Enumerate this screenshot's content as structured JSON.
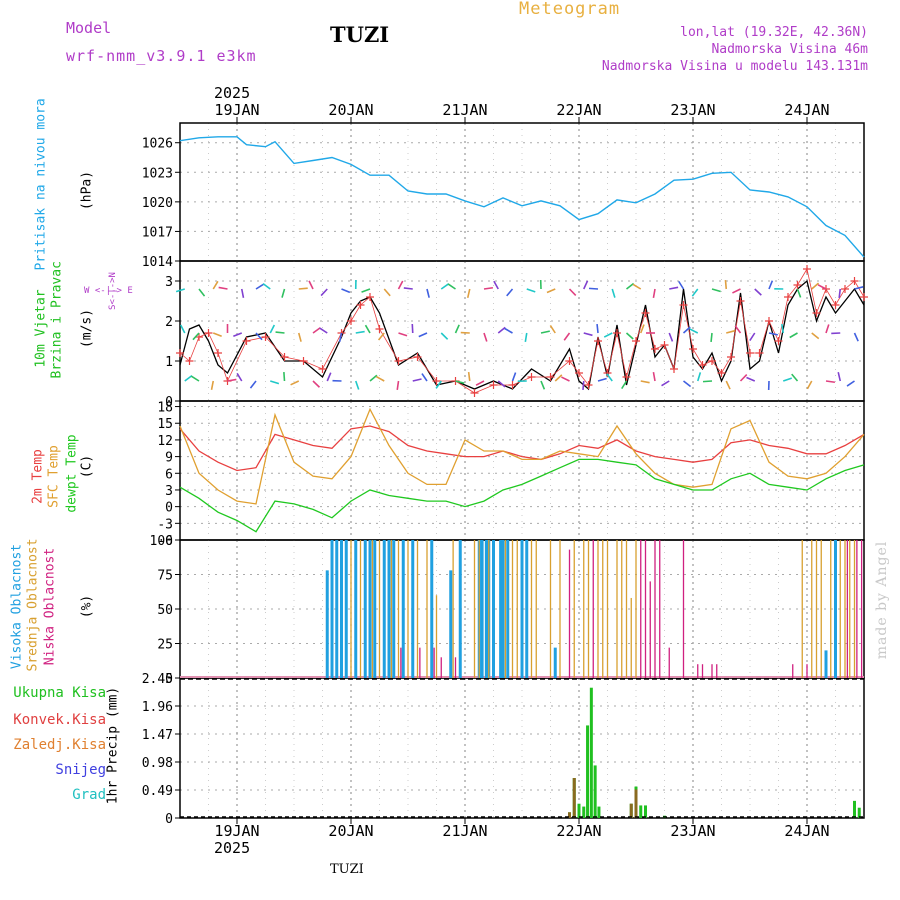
{
  "header": {
    "model_label": "Model",
    "model_version": "wrf-nmm_v3.9.1 e3km",
    "station": "TUZI",
    "title": "Meteogram",
    "coords": "lon,lat (19.32E, 42.36N)",
    "elevation": "Nadmorska Visina 46m",
    "model_elevation": "Nadmorska Visina u modelu 143.131m",
    "footer_station": "TUZI",
    "watermark": "made by Angel"
  },
  "time_axis": {
    "year": "2025",
    "days": [
      "19JAN",
      "20JAN",
      "21JAN",
      "22JAN",
      "23JAN",
      "24JAN"
    ],
    "hours_start": 0,
    "hours_end": 144,
    "day_start_hours": [
      12,
      36,
      60,
      84,
      108,
      132
    ]
  },
  "panels": {
    "pressure": {
      "title": "Pritisak na nivou mora",
      "unit": "(hPa)",
      "color": "#20a8e8"
    },
    "wind": {
      "title_line1": "10m Vjetar",
      "title_line2": "Brzina i Pravac",
      "unit": "(m/s)",
      "compass": "W <-|-> E",
      "compass_vert": "S<-|->N"
    },
    "temperature": {
      "title1": "2m Temp",
      "title2": "SFC Temp",
      "title3": "dewpt Temp",
      "unit": "(C)",
      "colors": [
        "#e84040",
        "#e0a030",
        "#20c820"
      ]
    },
    "cloud": {
      "title1": "Visoka Oblacnost",
      "title2": "Srednja Oblacnost",
      "title3": "Niska Oblacnost",
      "unit": "(%)",
      "colors": [
        "#20a0e0",
        "#d8a030",
        "#d02080"
      ]
    },
    "precip": {
      "unit": "1hr Precip (mm)",
      "legend": [
        "Ukupna Kisa",
        "Konvek.Kisa",
        "Zaledj.Kisa",
        "Snijeg",
        "Grad"
      ],
      "legend_colors": [
        "#20c020",
        "#e04040",
        "#e08030",
        "#4040e0",
        "#20c0c0"
      ]
    }
  },
  "chart_data": [
    {
      "type": "line",
      "title": "Pritisak na nivou mora",
      "ylabel": "(hPa)",
      "ylim": [
        1014,
        1028
      ],
      "yticks": [
        1014,
        1017,
        1020,
        1023,
        1026
      ],
      "x": [
        0,
        4,
        8,
        12,
        14,
        18,
        20,
        22,
        24,
        28,
        32,
        36,
        40,
        44,
        48,
        52,
        56,
        60,
        64,
        68,
        72,
        76,
        80,
        84,
        88,
        92,
        96,
        100,
        104,
        108,
        112,
        116,
        120,
        124,
        128,
        132,
        136,
        140,
        144
      ],
      "series": [
        {
          "name": "MSLP",
          "values": [
            1026.2,
            1026.5,
            1026.6,
            1026.6,
            1025.8,
            1025.6,
            1026.1,
            1025.0,
            1023.9,
            1024.2,
            1024.5,
            1023.8,
            1022.7,
            1022.7,
            1021.1,
            1020.8,
            1020.8,
            1020.1,
            1019.5,
            1020.4,
            1019.6,
            1020.1,
            1019.6,
            1018.2,
            1018.8,
            1020.2,
            1019.9,
            1020.8,
            1022.2,
            1022.3,
            1022.9,
            1023.0,
            1021.2,
            1021.0,
            1020.5,
            1019.5,
            1017.6,
            1016.6,
            1014.4
          ]
        }
      ]
    },
    {
      "type": "line",
      "title": "10m Vjetar Brzina i Pravac",
      "ylabel": "(m/s)",
      "ylim": [
        0,
        3.5
      ],
      "yticks": [
        0,
        1,
        2,
        3
      ],
      "x": [
        0,
        2,
        4,
        6,
        8,
        10,
        14,
        18,
        22,
        26,
        30,
        34,
        36,
        38,
        40,
        42,
        46,
        50,
        54,
        58,
        62,
        66,
        70,
        74,
        78,
        82,
        84,
        86,
        88,
        90,
        92,
        94,
        96,
        98,
        100,
        102,
        104,
        106,
        108,
        110,
        112,
        114,
        116,
        118,
        120,
        122,
        124,
        126,
        128,
        130,
        132,
        134,
        136,
        138,
        140,
        142,
        144
      ],
      "series": [
        {
          "name": "model",
          "values": [
            0.9,
            1.8,
            1.9,
            1.5,
            0.9,
            0.7,
            1.6,
            1.7,
            1.0,
            1.0,
            0.6,
            1.6,
            2.2,
            2.5,
            2.6,
            2.2,
            0.9,
            1.2,
            0.4,
            0.5,
            0.3,
            0.5,
            0.3,
            0.8,
            0.5,
            1.3,
            0.5,
            0.3,
            1.6,
            0.6,
            1.9,
            0.4,
            1.4,
            2.4,
            1.1,
            1.4,
            0.8,
            2.8,
            1.1,
            0.8,
            1.2,
            0.5,
            1.0,
            2.7,
            0.8,
            1.0,
            2.0,
            1.2,
            2.4,
            2.8,
            3.0,
            2.0,
            2.6,
            2.2,
            2.5,
            2.8,
            2.4
          ]
        },
        {
          "name": "gust",
          "values": [
            1.2,
            1.0,
            1.6,
            1.7,
            1.2,
            0.5,
            1.5,
            1.6,
            1.1,
            1.0,
            0.8,
            1.7,
            2.0,
            2.4,
            2.6,
            1.8,
            1.0,
            1.1,
            0.5,
            0.5,
            0.2,
            0.4,
            0.4,
            0.6,
            0.6,
            1.0,
            0.7,
            0.4,
            1.5,
            0.7,
            1.7,
            0.6,
            1.5,
            2.2,
            1.3,
            1.4,
            0.8,
            2.4,
            1.3,
            0.9,
            1.0,
            0.7,
            1.1,
            2.5,
            1.2,
            1.2,
            2.0,
            1.5,
            2.6,
            2.9,
            3.3,
            2.2,
            2.8,
            2.4,
            2.8,
            3.0,
            2.6
          ]
        }
      ]
    },
    {
      "type": "line",
      "title": "2m Temp / SFC Temp / dewpt Temp",
      "ylabel": "(C)",
      "ylim": [
        -6,
        19
      ],
      "yticks": [
        -6,
        -3,
        0,
        3,
        6,
        9,
        12,
        15,
        18
      ],
      "x": [
        0,
        4,
        8,
        12,
        16,
        20,
        24,
        28,
        32,
        36,
        40,
        44,
        48,
        52,
        56,
        60,
        64,
        68,
        72,
        76,
        80,
        84,
        88,
        92,
        96,
        100,
        104,
        108,
        112,
        116,
        120,
        124,
        128,
        132,
        136,
        140,
        144
      ],
      "series": [
        {
          "name": "2m Temp",
          "values": [
            14.0,
            10.0,
            8.0,
            6.5,
            7.0,
            13.0,
            12.0,
            11.0,
            10.5,
            14.0,
            14.5,
            13.5,
            11.0,
            10.0,
            9.5,
            9.0,
            9.0,
            10.0,
            9.0,
            8.5,
            9.5,
            11.0,
            10.5,
            12.0,
            10.0,
            9.0,
            8.5,
            8.0,
            8.5,
            11.5,
            12.0,
            11.0,
            10.5,
            9.5,
            9.5,
            11.0,
            13.0
          ]
        },
        {
          "name": "SFC Temp",
          "values": [
            14.5,
            6.0,
            3.0,
            1.0,
            0.5,
            16.5,
            8.0,
            5.5,
            5.0,
            9.0,
            17.5,
            11.0,
            6.0,
            4.0,
            4.0,
            12.0,
            10.0,
            10.0,
            8.5,
            8.5,
            10.0,
            9.5,
            9.0,
            14.5,
            9.5,
            6.0,
            4.0,
            3.5,
            4.0,
            14.0,
            15.5,
            8.0,
            5.5,
            5.0,
            6.0,
            9.0,
            13.0
          ]
        },
        {
          "name": "dewpt Temp",
          "values": [
            3.5,
            1.5,
            -1.0,
            -2.5,
            -4.5,
            1.0,
            0.5,
            -0.5,
            -2.0,
            1.0,
            3.0,
            2.0,
            1.5,
            1.0,
            1.0,
            0.0,
            1.0,
            3.0,
            4.0,
            5.5,
            7.0,
            8.5,
            8.5,
            8.0,
            7.5,
            5.0,
            4.0,
            3.0,
            3.0,
            5.0,
            6.0,
            4.0,
            3.5,
            3.0,
            5.0,
            6.5,
            7.5
          ]
        }
      ]
    },
    {
      "type": "bar",
      "title": "Visoka / Srednja / Niska Oblacnost",
      "ylabel": "(%)",
      "ylim": [
        0,
        100
      ],
      "yticks": [
        0,
        25,
        50,
        75,
        100
      ],
      "series": [
        {
          "name": "Visoka Oblacnost",
          "x": [
            31,
            32,
            33,
            34,
            35,
            37,
            39,
            40,
            41,
            43,
            44,
            45,
            47,
            49,
            53,
            57,
            59,
            63,
            63.6,
            64.5,
            65,
            66,
            67.5,
            68,
            69,
            72,
            73,
            79,
            136,
            138
          ],
          "values": [
            78,
            100,
            100,
            100,
            100,
            100,
            100,
            100,
            100,
            100,
            100,
            100,
            100,
            100,
            100,
            78,
            100,
            100,
            100,
            100,
            100,
            100,
            100,
            100,
            100,
            100,
            100,
            22,
            20,
            100
          ]
        },
        {
          "name": "Srednja Oblacnost",
          "x": [
            36,
            38,
            40.5,
            42,
            44.5,
            46,
            48,
            50,
            52,
            54,
            57.5,
            62,
            63,
            65,
            68.5,
            70,
            71,
            74,
            75,
            78,
            80,
            83,
            85,
            86,
            88,
            89,
            90,
            92,
            93,
            94,
            95,
            96,
            131,
            133,
            134,
            135,
            137,
            139,
            140,
            141,
            142
          ],
          "values": [
            100,
            100,
            100,
            100,
            100,
            100,
            100,
            100,
            100,
            60,
            100,
            100,
            100,
            100,
            100,
            100,
            100,
            100,
            100,
            100,
            100,
            100,
            100,
            100,
            100,
            100,
            100,
            100,
            100,
            100,
            58,
            100,
            100,
            100,
            100,
            100,
            100,
            100,
            100,
            100,
            100
          ]
        },
        {
          "name": "Niska Oblacnost",
          "x": [
            46.5,
            50.5,
            53.5,
            55,
            58,
            82,
            87,
            97,
            98,
            99,
            100,
            101,
            103,
            106,
            109,
            110,
            112,
            113,
            129,
            132,
            140.5,
            142.5,
            143.5
          ],
          "values": [
            22,
            22,
            22,
            15,
            15,
            93,
            100,
            100,
            100,
            70,
            100,
            100,
            22,
            100,
            10,
            10,
            10,
            10,
            10,
            10,
            100,
            100,
            100
          ]
        }
      ]
    },
    {
      "type": "bar",
      "title": "1hr Precip",
      "ylabel": "(mm)",
      "ylim": [
        0,
        2.45
      ],
      "yticks": [
        0,
        0.49,
        0.98,
        1.47,
        1.96,
        2.45
      ],
      "series": [
        {
          "name": "Ukupna Kisa",
          "x": [
            82,
            83,
            84,
            85,
            85.8,
            86.6,
            87.4,
            88.2,
            95,
            96,
            97,
            98,
            102,
            142,
            143
          ],
          "values": [
            0.1,
            0.7,
            0.25,
            0.2,
            1.62,
            2.28,
            0.92,
            0.2,
            0.25,
            0.55,
            0.22,
            0.22,
            0.04,
            0.3,
            0.18
          ]
        },
        {
          "name": "Konvek.Kisa",
          "x": [
            82,
            83,
            95,
            96
          ],
          "values": [
            0.1,
            0.7,
            0.25,
            0.5
          ]
        },
        {
          "name": "Zaledj.Kisa",
          "x": [],
          "values": []
        },
        {
          "name": "Snijeg",
          "x": [],
          "values": []
        },
        {
          "name": "Grad",
          "x": [],
          "values": []
        }
      ]
    }
  ]
}
